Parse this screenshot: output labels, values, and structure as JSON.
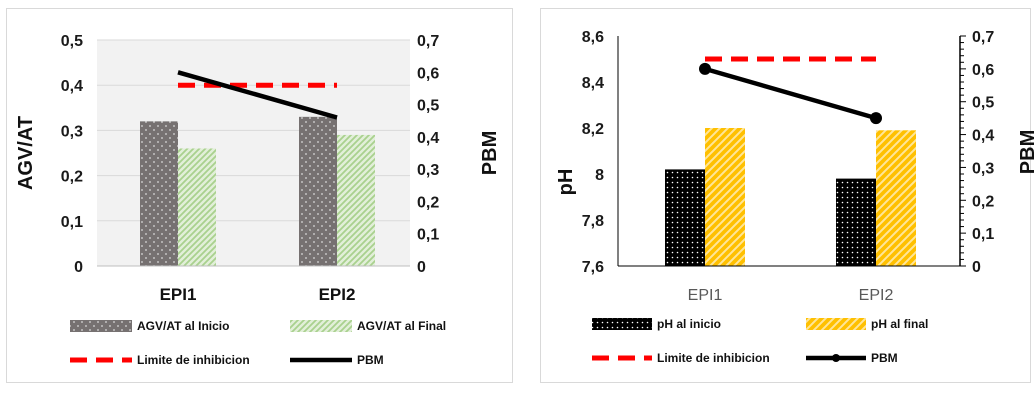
{
  "chart_data": [
    {
      "type": "bar",
      "categories": [
        "EPI1",
        "EPI2"
      ],
      "series": [
        {
          "name": "AGV/AT al Inicio",
          "type": "bar",
          "axis": "left",
          "values": [
            0.32,
            0.33
          ],
          "color": "#7f7f7f"
        },
        {
          "name": "AGV/AT al Final",
          "type": "bar",
          "axis": "left",
          "values": [
            0.26,
            0.29
          ],
          "color": "#a9d18e"
        },
        {
          "name": "Limite de inhibicion",
          "type": "line",
          "axis": "left",
          "values": [
            0.4,
            0.4
          ],
          "color": "#ff0000"
        },
        {
          "name": "PBM",
          "type": "line",
          "axis": "right",
          "values": [
            0.6,
            0.46
          ],
          "color": "#000000"
        }
      ],
      "ylabel": "AGV/AT",
      "y2label": "PBM",
      "ylim": [
        0,
        0.5
      ],
      "y2lim": [
        0,
        0.7
      ],
      "yticks": [
        "0",
        "0,1",
        "0,2",
        "0,3",
        "0,4",
        "0,5"
      ],
      "y2ticks": [
        "0",
        "0,1",
        "0,2",
        "0,3",
        "0,4",
        "0,5",
        "0,6",
        "0,7"
      ],
      "grid": true,
      "legend": "bottom"
    },
    {
      "type": "bar",
      "categories": [
        "EPI1",
        "EPI2"
      ],
      "series": [
        {
          "name": "pH al inicio",
          "type": "bar",
          "axis": "left",
          "values": [
            8.02,
            7.98
          ],
          "color": "#000000"
        },
        {
          "name": "pH al final",
          "type": "bar",
          "axis": "left",
          "values": [
            8.2,
            8.19
          ],
          "color": "#ffc000"
        },
        {
          "name": "Limite de inhibicion",
          "type": "line",
          "axis": "right",
          "values": [
            0.63,
            0.63
          ],
          "color": "#ff0000"
        },
        {
          "name": "PBM",
          "type": "line",
          "axis": "right",
          "values": [
            0.6,
            0.45
          ],
          "color": "#000000"
        }
      ],
      "ylabel": "pH",
      "y2label": "PBM",
      "ylim": [
        7.6,
        8.6
      ],
      "y2lim": [
        0,
        0.7
      ],
      "yticks": [
        "7,6",
        "7,8",
        "8",
        "8,2",
        "8,4",
        "8,6"
      ],
      "y2ticks": [
        "0",
        "0,1",
        "0,2",
        "0,3",
        "0,4",
        "0,5",
        "0,6",
        "0,7"
      ],
      "grid": false,
      "legend": "bottom"
    }
  ]
}
